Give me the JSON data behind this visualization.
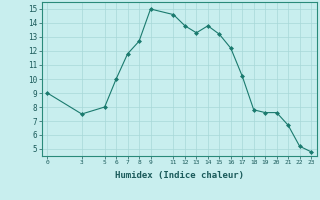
{
  "x": [
    0,
    3,
    5,
    6,
    7,
    8,
    9,
    11,
    12,
    13,
    14,
    15,
    16,
    17,
    18,
    19,
    20,
    21,
    22,
    23
  ],
  "y": [
    9,
    7.5,
    8,
    10,
    11.8,
    12.7,
    15,
    14.6,
    13.8,
    13.3,
    13.8,
    13.2,
    12.2,
    10.2,
    7.8,
    7.6,
    7.6,
    6.7,
    5.2,
    4.8
  ],
  "line_color": "#1a7a6e",
  "marker": "D",
  "marker_size": 2.0,
  "bg_color": "#c8eeee",
  "grid_color": "#a8d8d8",
  "xlabel": "Humidex (Indice chaleur)",
  "xticks": [
    0,
    3,
    5,
    6,
    7,
    8,
    9,
    11,
    12,
    13,
    14,
    15,
    16,
    17,
    18,
    19,
    20,
    21,
    22,
    23
  ],
  "yticks": [
    5,
    6,
    7,
    8,
    9,
    10,
    11,
    12,
    13,
    14,
    15
  ],
  "ylim": [
    4.5,
    15.5
  ],
  "xlim": [
    -0.5,
    23.5
  ]
}
